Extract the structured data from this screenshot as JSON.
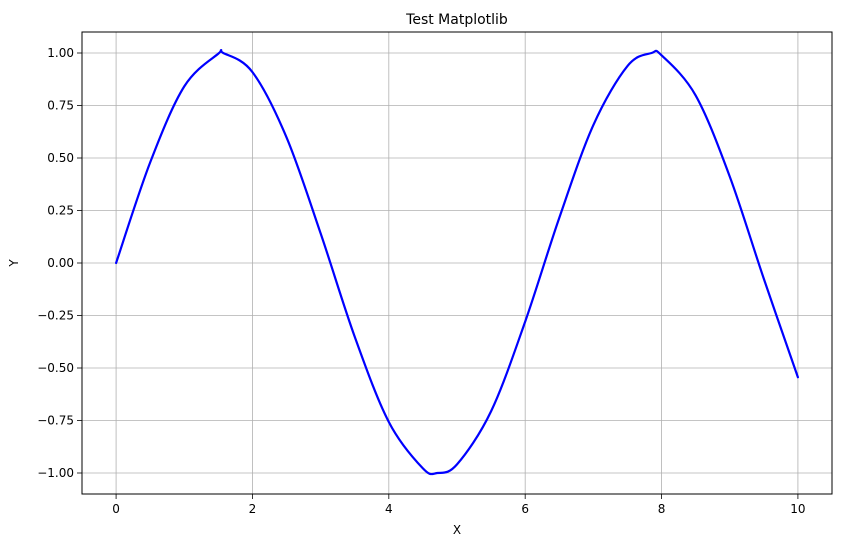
{
  "chart_data": {
    "type": "line",
    "title": "Test Matplotlib",
    "xlabel": "X",
    "ylabel": "Y",
    "xlim": [
      -0.5,
      10.5
    ],
    "ylim": [
      -1.1,
      1.1
    ],
    "xticks": [
      0,
      2,
      4,
      6,
      8,
      10
    ],
    "xtick_labels": [
      "0",
      "2",
      "4",
      "6",
      "8",
      "10"
    ],
    "yticks": [
      -1.0,
      -0.75,
      -0.5,
      -0.25,
      0.0,
      0.25,
      0.5,
      0.75,
      1.0
    ],
    "ytick_labels": [
      "−1.00",
      "−0.75",
      "−0.50",
      "−0.25",
      "0.00",
      "0.25",
      "0.50",
      "0.75",
      "1.00"
    ],
    "grid": true,
    "series": [
      {
        "color": "#0000ff",
        "x": [
          0,
          0.5,
          1.0,
          1.5,
          1.571,
          2.0,
          2.5,
          3.0,
          3.5,
          4.0,
          4.5,
          4.712,
          5.0,
          5.5,
          6.0,
          6.5,
          7.0,
          7.5,
          7.854,
          8.0,
          8.5,
          9.0,
          9.5,
          10.0
        ],
        "y": [
          0.0,
          0.479,
          0.841,
          0.997,
          1.0,
          0.909,
          0.598,
          0.141,
          -0.351,
          -0.757,
          -0.978,
          -1.0,
          -0.959,
          -0.706,
          -0.279,
          0.215,
          0.657,
          0.938,
          1.0,
          0.989,
          0.798,
          0.412,
          -0.075,
          -0.544
        ]
      }
    ]
  }
}
